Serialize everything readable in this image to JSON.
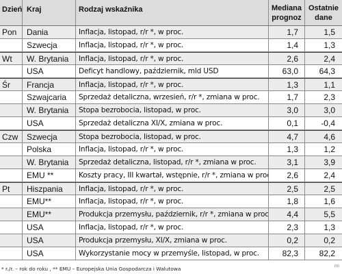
{
  "header": {
    "day": "Dzień",
    "country": "Kraj",
    "indicator": "Rodzaj wskaźnika",
    "forecast_line1": "Mediana",
    "forecast_line2": "prognoz",
    "last_line1": "Ostatnie",
    "last_line2": "dane"
  },
  "rows": [
    {
      "day": "Pon",
      "country": "Dania",
      "indicator": "Inflacja, listopad,  r/r *, w proc.",
      "forecast": "1,7",
      "last": "1,5"
    },
    {
      "day": "",
      "country": "Szwecja",
      "indicator": "Inflacja, listopad, r/r *, w proc.",
      "forecast": "1,4",
      "last": "1,3"
    },
    {
      "day": "Wt",
      "country": "W. Brytania",
      "indicator": "Inflacja, listopad, r/r *, w proc.",
      "forecast": "2,6",
      "last": "2,4"
    },
    {
      "day": "",
      "country": "USA",
      "indicator": "Deficyt handlowy, październik, mld USD",
      "forecast": "63,0",
      "last": "64,3"
    },
    {
      "day": "Śr",
      "country": "Francja",
      "indicator": "Inflacja, listopad, r/r *,  w proc.",
      "forecast": "1,3",
      "last": "1,1"
    },
    {
      "day": "",
      "country": "Szwajcaria",
      "indicator": "Sprzedaż detaliczna, wrzesień, r/r *, zmiana w proc.",
      "forecast": "1,7",
      "last": "2,3"
    },
    {
      "day": "",
      "country": "W. Brytania",
      "indicator": "Stopa bezrobocia, listopad, w proc.",
      "forecast": "3,0",
      "last": "3,0"
    },
    {
      "day": "",
      "country": "USA",
      "indicator": "Sprzedaż detaliczna XI/X, zmiana w proc.",
      "forecast": "0,1",
      "last": "-0,4"
    },
    {
      "day": "Czw",
      "country": "Szwecja",
      "indicator": "Stopa bezrobocia, listopad, w proc.",
      "forecast": "4,7",
      "last": "4,6"
    },
    {
      "day": "",
      "country": "Polska",
      "indicator": "Inflacja, listopad, r/r *, w proc.",
      "forecast": "1,3",
      "last": "1,2"
    },
    {
      "day": "",
      "country": "W. Brytania",
      "indicator": "Sprzedaż detaliczna, listopad, r/r *, zmiana w proc.",
      "forecast": "3,1",
      "last": "3,9"
    },
    {
      "day": "",
      "country": "EMU **",
      "indicator": "Koszty pracy, III kwartał, wstępnie, r/r *, zmiana  w proc.",
      "forecast": "2,6",
      "last": "2,4"
    },
    {
      "day": "Pt",
      "country": "Hiszpania",
      "indicator": "Inflacja, listopad, r/r *, w proc.",
      "forecast": "2,5",
      "last": "2,5"
    },
    {
      "day": "",
      "country": "EMU**",
      "indicator": "Inflacja, listopad, r/r *, w proc.",
      "forecast": "1,8",
      "last": "1,6"
    },
    {
      "day": "",
      "country": "EMU**",
      "indicator": "Produkcja przemysłu, październik, r/r *, zmiana w proc.",
      "forecast": "4,4",
      "last": "5,5"
    },
    {
      "day": "",
      "country": "USA",
      "indicator": "Inflacja, listopad, r/r *, w proc.",
      "forecast": "2,3",
      "last": "1,3"
    },
    {
      "day": "",
      "country": "USA",
      "indicator": "Produkcja przemysłu, XI/X, zmiana w proc.",
      "forecast": "0,2",
      "last": "0,2"
    },
    {
      "day": "",
      "country": "USA",
      "indicator": "Wykorzystanie mocy w przemyśle, listopad, w proc.",
      "forecast": "82,3",
      "last": "82,2"
    }
  ],
  "footnote": "* r./r. – rok do roku , ** EMU – Europejska Unia Gospodarcza i Walutowa",
  "mark": "rm"
}
